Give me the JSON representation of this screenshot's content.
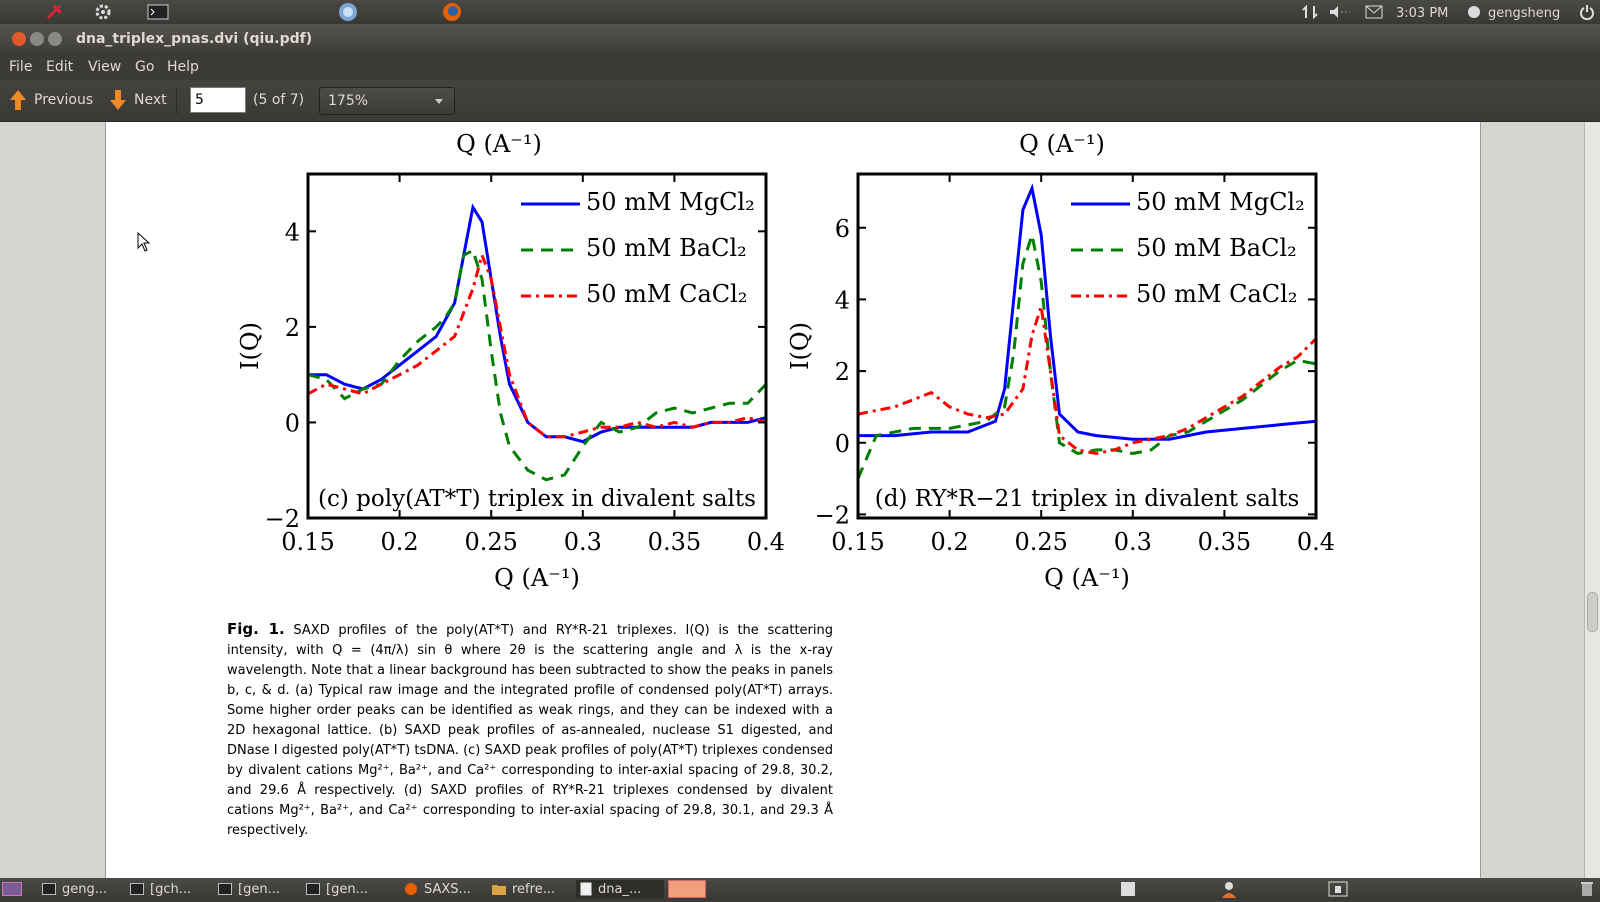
{
  "topbar": {
    "time": "3:03 PM",
    "user": "gengsheng"
  },
  "window": {
    "title": "dna_triplex_pnas.dvi (qiu.pdf)"
  },
  "menu": [
    "File",
    "Edit",
    "View",
    "Go",
    "Help"
  ],
  "toolbar": {
    "previous": "Previous",
    "next": "Next",
    "page_value": "5",
    "page_count": "(5 of 7)",
    "zoom": "175%"
  },
  "figure": {
    "top_xlabel_left": "Q (A⁻¹)",
    "top_xlabel_right": "Q (A⁻¹)",
    "caption_fig": "Fig. 1.",
    "caption_text": "SAXD profiles of the poly(AT*T) and RY*R-21 triplexes. I(Q) is the scattering intensity, with Q = (4π/λ) sin θ where 2θ is the scattering angle and λ is the x-ray wavelength. Note that a linear background has been subtracted to show the peaks in panels b, c, & d. (a) Typical raw image and the integrated profile of condensed poly(AT*T) arrays. Some higher order peaks can be identified as weak rings, and they can be indexed with a 2D hexagonal lattice. (b) SAXD peak profiles of as-annealed, nuclease S1 digested, and DNase I digested poly(AT*T) tsDNA. (c) SAXD peak profiles of poly(AT*T) triplexes condensed by divalent cations Mg²⁺, Ba²⁺, and Ca²⁺ corresponding to inter-axial spacing of 29.8, 30.2, and 29.6 Å respectively. (d) SAXD profiles of RY*R-21 triplexes condensed by divalent cations Mg²⁺, Ba²⁺, and Ca²⁺ corresponding to inter-axial spacing of 29.8, 30.1, and 29.3 Å respectively."
  },
  "taskbar": [
    "geng...",
    "[gch...",
    "[gen...",
    "[gen...",
    "SAXS...",
    "refre...",
    "dna_..."
  ],
  "chart_data": [
    {
      "type": "line",
      "annotation": "(c) poly(AT*T) triplex in divalent salts",
      "xlabel": "Q (A⁻¹)",
      "ylabel": "I(Q)",
      "xlim": [
        0.15,
        0.4
      ],
      "ylim": [
        -2,
        5.2
      ],
      "xticks": [
        "0.15",
        "0.2",
        "0.25",
        "0.3",
        "0.35",
        "0.4"
      ],
      "yticks": [
        "−2",
        "0",
        "2",
        "4"
      ],
      "ytick_values": [
        -2,
        0,
        2,
        4
      ],
      "series": [
        {
          "name": "50 mM MgCl₂",
          "color": "#0000ff",
          "style": "solid",
          "x": [
            0.15,
            0.16,
            0.17,
            0.18,
            0.19,
            0.2,
            0.21,
            0.22,
            0.23,
            0.235,
            0.24,
            0.245,
            0.25,
            0.255,
            0.26,
            0.27,
            0.28,
            0.29,
            0.3,
            0.31,
            0.32,
            0.33,
            0.34,
            0.35,
            0.36,
            0.37,
            0.38,
            0.39,
            0.4
          ],
          "y": [
            1.0,
            1.0,
            0.8,
            0.7,
            0.9,
            1.2,
            1.5,
            1.8,
            2.5,
            3.5,
            4.5,
            4.2,
            3.0,
            1.8,
            0.8,
            0.0,
            -0.3,
            -0.3,
            -0.4,
            -0.2,
            -0.1,
            -0.1,
            -0.1,
            -0.1,
            -0.1,
            0.0,
            0.0,
            0.0,
            0.1
          ]
        },
        {
          "name": "50 mM BaCl₂",
          "color": "#008000",
          "style": "dashed",
          "x": [
            0.15,
            0.16,
            0.17,
            0.18,
            0.19,
            0.2,
            0.21,
            0.22,
            0.225,
            0.23,
            0.235,
            0.24,
            0.245,
            0.25,
            0.255,
            0.26,
            0.27,
            0.28,
            0.29,
            0.3,
            0.31,
            0.32,
            0.33,
            0.34,
            0.35,
            0.36,
            0.37,
            0.38,
            0.39,
            0.4
          ],
          "y": [
            1.0,
            0.9,
            0.5,
            0.7,
            0.8,
            1.3,
            1.7,
            2.0,
            2.2,
            2.5,
            3.5,
            3.6,
            3.0,
            1.5,
            0.2,
            -0.5,
            -1.0,
            -1.2,
            -1.1,
            -0.5,
            0.0,
            -0.2,
            -0.1,
            0.2,
            0.3,
            0.2,
            0.3,
            0.4,
            0.4,
            0.8
          ]
        },
        {
          "name": "50 mM CaCl₂",
          "color": "#ff0000",
          "style": "dashdot",
          "x": [
            0.15,
            0.16,
            0.17,
            0.18,
            0.19,
            0.2,
            0.21,
            0.22,
            0.23,
            0.24,
            0.245,
            0.25,
            0.255,
            0.26,
            0.27,
            0.28,
            0.29,
            0.3,
            0.31,
            0.32,
            0.33,
            0.34,
            0.35,
            0.36,
            0.37,
            0.38,
            0.39,
            0.4
          ],
          "y": [
            0.6,
            0.8,
            0.7,
            0.6,
            0.8,
            1.0,
            1.2,
            1.5,
            1.8,
            2.8,
            3.5,
            3.0,
            2.0,
            1.0,
            0.0,
            -0.3,
            -0.3,
            -0.2,
            -0.1,
            -0.1,
            0.0,
            -0.1,
            0.0,
            -0.1,
            0.0,
            0.0,
            0.1,
            0.0
          ]
        }
      ]
    },
    {
      "type": "line",
      "annotation": "(d) RY*R−21 triplex in divalent salts",
      "xlabel": "Q (A⁻¹)",
      "ylabel": "I(Q)",
      "xlim": [
        0.15,
        0.4
      ],
      "ylim": [
        -2.1,
        7.5
      ],
      "xticks": [
        "0.15",
        "0.2",
        "0.25",
        "0.3",
        "0.35",
        "0.4"
      ],
      "yticks": [
        "−2",
        "0",
        "2",
        "4",
        "6"
      ],
      "ytick_values": [
        -2,
        0,
        2,
        4,
        6
      ],
      "series": [
        {
          "name": "50 mM MgCl₂",
          "color": "#0000ff",
          "style": "solid",
          "x": [
            0.15,
            0.17,
            0.19,
            0.21,
            0.225,
            0.23,
            0.235,
            0.24,
            0.245,
            0.25,
            0.255,
            0.26,
            0.27,
            0.28,
            0.3,
            0.32,
            0.34,
            0.36,
            0.38,
            0.4
          ],
          "y": [
            0.2,
            0.2,
            0.3,
            0.3,
            0.6,
            1.5,
            4.0,
            6.5,
            7.1,
            5.8,
            3.0,
            0.8,
            0.3,
            0.2,
            0.1,
            0.1,
            0.3,
            0.4,
            0.5,
            0.6
          ]
        },
        {
          "name": "50 mM BaCl₂",
          "color": "#008000",
          "style": "dashed",
          "x": [
            0.15,
            0.16,
            0.18,
            0.2,
            0.22,
            0.23,
            0.235,
            0.24,
            0.245,
            0.25,
            0.255,
            0.26,
            0.27,
            0.28,
            0.29,
            0.3,
            0.31,
            0.32,
            0.33,
            0.34,
            0.35,
            0.36,
            0.37,
            0.38,
            0.39,
            0.4
          ],
          "y": [
            -1.0,
            0.2,
            0.4,
            0.4,
            0.6,
            1.0,
            2.5,
            5.0,
            5.8,
            4.5,
            2.0,
            0.0,
            -0.3,
            -0.2,
            -0.2,
            -0.3,
            -0.2,
            0.2,
            0.3,
            0.6,
            0.9,
            1.2,
            1.6,
            2.0,
            2.3,
            2.2
          ]
        },
        {
          "name": "50 mM CaCl₂",
          "color": "#ff0000",
          "style": "dashdot",
          "x": [
            0.15,
            0.16,
            0.17,
            0.18,
            0.19,
            0.2,
            0.21,
            0.22,
            0.23,
            0.24,
            0.245,
            0.25,
            0.255,
            0.26,
            0.27,
            0.28,
            0.29,
            0.3,
            0.31,
            0.32,
            0.33,
            0.34,
            0.35,
            0.36,
            0.37,
            0.38,
            0.39,
            0.4
          ],
          "y": [
            0.8,
            0.9,
            1.0,
            1.2,
            1.4,
            1.0,
            0.8,
            0.7,
            0.8,
            1.5,
            3.0,
            3.8,
            2.0,
            0.2,
            -0.2,
            -0.3,
            -0.2,
            0.0,
            0.1,
            0.2,
            0.4,
            0.7,
            1.0,
            1.3,
            1.7,
            2.1,
            2.4,
            2.9
          ]
        }
      ]
    }
  ]
}
